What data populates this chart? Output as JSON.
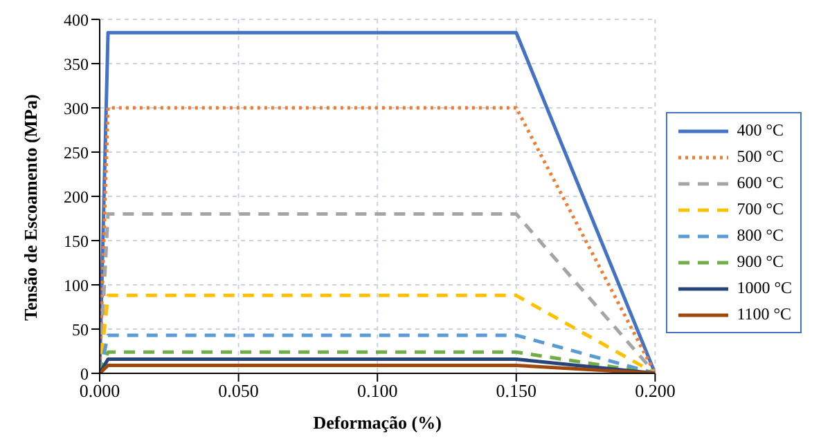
{
  "chart_data": {
    "type": "line",
    "xlabel": "Deformação (%)",
    "ylabel": "Tensão de Escoamento (MPa)",
    "x": [
      0,
      0.003,
      0.15,
      0.2
    ],
    "series": [
      {
        "name": "400 °C",
        "color": "#4472c4",
        "line_style": "solid",
        "values": [
          0,
          385,
          385,
          0
        ]
      },
      {
        "name": "500 °C",
        "color": "#ed7d31",
        "line_style": "dotted",
        "values": [
          0,
          300,
          300,
          0
        ]
      },
      {
        "name": "600 °C",
        "color": "#a5a5a5",
        "line_style": "dashed",
        "values": [
          0,
          180,
          180,
          0
        ]
      },
      {
        "name": "700 °C",
        "color": "#ffc000",
        "line_style": "dashed",
        "values": [
          0,
          88,
          88,
          0
        ]
      },
      {
        "name": "800 °C",
        "color": "#5b9bd5",
        "line_style": "dashed",
        "values": [
          0,
          43,
          43,
          0
        ]
      },
      {
        "name": "900 °C",
        "color": "#70ad47",
        "line_style": "dashed",
        "values": [
          0,
          24,
          24,
          0
        ]
      },
      {
        "name": "1000 °C",
        "color": "#264478",
        "line_style": "solid",
        "values": [
          0,
          16,
          16,
          0
        ]
      },
      {
        "name": "1100 °C",
        "color": "#9e480e",
        "line_style": "solid",
        "values": [
          0,
          9,
          9,
          0
        ]
      }
    ],
    "xlim": [
      0,
      0.2
    ],
    "xticks": [
      {
        "value": 0,
        "label": "0.000"
      },
      {
        "value": 0.05,
        "label": "0.050"
      },
      {
        "value": 0.1,
        "label": "0.100"
      },
      {
        "value": 0.15,
        "label": "0.150"
      },
      {
        "value": 0.2,
        "label": "0.200"
      }
    ],
    "ylim": [
      0,
      400
    ],
    "yticks": [
      0,
      50,
      100,
      150,
      200,
      250,
      300,
      350,
      400
    ],
    "grid": true,
    "legend": "right",
    "marker": "none"
  }
}
